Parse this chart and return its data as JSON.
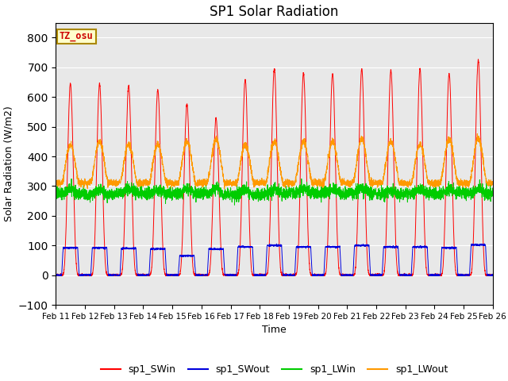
{
  "title": "SP1 Solar Radiation",
  "xlabel": "Time",
  "ylabel": "Solar Radiation (W/m2)",
  "ylim": [
    -100,
    850
  ],
  "yticks": [
    -100,
    0,
    100,
    200,
    300,
    400,
    500,
    600,
    700,
    800
  ],
  "xtick_labels": [
    "Feb 11",
    "Feb 12",
    "Feb 13",
    "Feb 14",
    "Feb 15",
    "Feb 16",
    "Feb 17",
    "Feb 18",
    "Feb 19",
    "Feb 20",
    "Feb 21",
    "Feb 22",
    "Feb 23",
    "Feb 24",
    "Feb 25",
    "Feb 26"
  ],
  "colors": {
    "sp1_SWin": "#ff0000",
    "sp1_SWout": "#0000dd",
    "sp1_LWin": "#00cc00",
    "sp1_LWout": "#ff9900"
  },
  "tz_label": "TZ_osu",
  "bg_color": "#e8e8e8",
  "n_days": 15,
  "pts_per_day": 288,
  "sw_peaks": [
    645,
    645,
    640,
    625,
    575,
    530,
    660,
    695,
    680,
    680,
    695,
    690,
    695,
    680,
    725
  ],
  "sw_out_peaks": [
    92,
    92,
    90,
    88,
    65,
    88,
    95,
    100,
    95,
    95,
    100,
    95,
    95,
    92,
    102
  ],
  "lw_out_day_peaks": [
    440,
    450,
    440,
    440,
    450,
    460,
    440,
    450,
    450,
    450,
    460,
    450,
    440,
    460,
    460
  ],
  "lw_out_night": 310
}
